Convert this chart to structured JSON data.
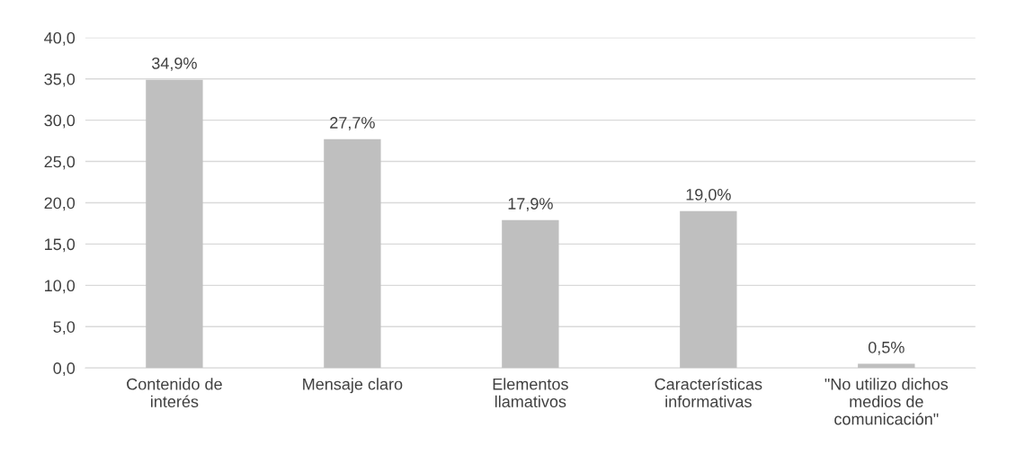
{
  "chart_data": {
    "type": "bar",
    "categories": [
      "Contenido de\ninterés",
      "Mensaje claro",
      "Elementos\nllamativos",
      "Características\ninformativas",
      "\"No utilizo dichos\nmedios de\ncomunicación\""
    ],
    "values": [
      34.9,
      27.7,
      17.9,
      19.0,
      0.5
    ],
    "value_labels": [
      "34,9%",
      "27,7%",
      "17,9%",
      "19,0%",
      "0,5%"
    ],
    "color": "#bfbfbf",
    "ylim": [
      0,
      40
    ],
    "yticks": [
      {
        "value": 0,
        "label": "0,0"
      },
      {
        "value": 5,
        "label": "5,0"
      },
      {
        "value": 10,
        "label": "10,0"
      },
      {
        "value": 15,
        "label": "15,0"
      },
      {
        "value": 20,
        "label": "20,0"
      },
      {
        "value": 25,
        "label": "25,0"
      },
      {
        "value": 30,
        "label": "30,0"
      },
      {
        "value": 35,
        "label": "35,0"
      },
      {
        "value": 40,
        "label": "40,0"
      }
    ],
    "grid": "y",
    "legend": false
  }
}
